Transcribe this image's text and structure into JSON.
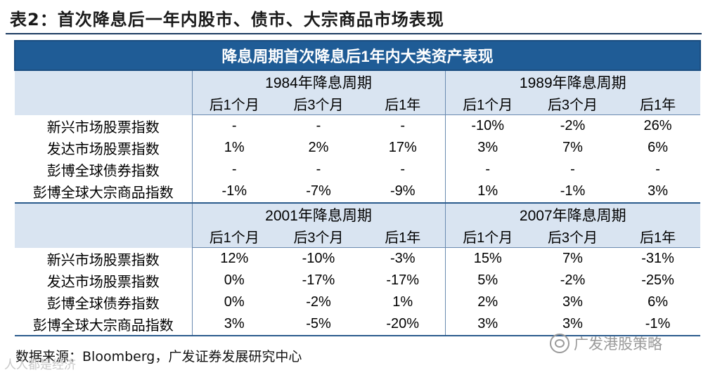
{
  "caption": "表2：首次降息后一年内股市、债市、大宗商品市场表现",
  "table": {
    "title": "降息周期首次降息后1年内大类资产表现",
    "blocks": [
      {
        "periods": [
          "1984年降息周期",
          "1989年降息周期"
        ],
        "subheaders": [
          "后1个月",
          "后3个月",
          "后1年",
          "后1个月",
          "后3个月",
          "后1年"
        ],
        "rows": [
          {
            "label": "新兴市场股票指数",
            "values": [
              "-",
              "-",
              "-",
              "-10%",
              "-2%",
              "26%"
            ]
          },
          {
            "label": "发达市场股票指数",
            "values": [
              "1%",
              "2%",
              "17%",
              "3%",
              "7%",
              "6%"
            ]
          },
          {
            "label": "彭博全球债券指数",
            "values": [
              "-",
              "-",
              "-",
              "-",
              "-",
              "-"
            ]
          },
          {
            "label": "彭博全球大宗商品指数",
            "values": [
              "-1%",
              "-7%",
              "-9%",
              "1%",
              "-1%",
              "3%"
            ]
          }
        ]
      },
      {
        "periods": [
          "2001年降息周期",
          "2007年降息周期"
        ],
        "subheaders": [
          "后1个月",
          "后3个月",
          "后1年",
          "后1个月",
          "后3个月",
          "后1年"
        ],
        "rows": [
          {
            "label": "新兴市场股票指数",
            "values": [
              "12%",
              "-10%",
              "-3%",
              "15%",
              "7%",
              "-31%"
            ]
          },
          {
            "label": "发达市场股票指数",
            "values": [
              "0%",
              "-17%",
              "-17%",
              "5%",
              "-2%",
              "-25%"
            ]
          },
          {
            "label": "彭博全球债券指数",
            "values": [
              "0%",
              "-2%",
              "1%",
              "2%",
              "3%",
              "6%"
            ]
          },
          {
            "label": "彭博全球大宗商品指数",
            "values": [
              "3%",
              "-5%",
              "-20%",
              "3%",
              "3%",
              "-1%"
            ]
          }
        ]
      }
    ]
  },
  "source": "数据来源：Bloomberg，广发证券发展研究中心",
  "watermark_right": "广发港股策略",
  "watermark_left": "人人都是经济"
}
